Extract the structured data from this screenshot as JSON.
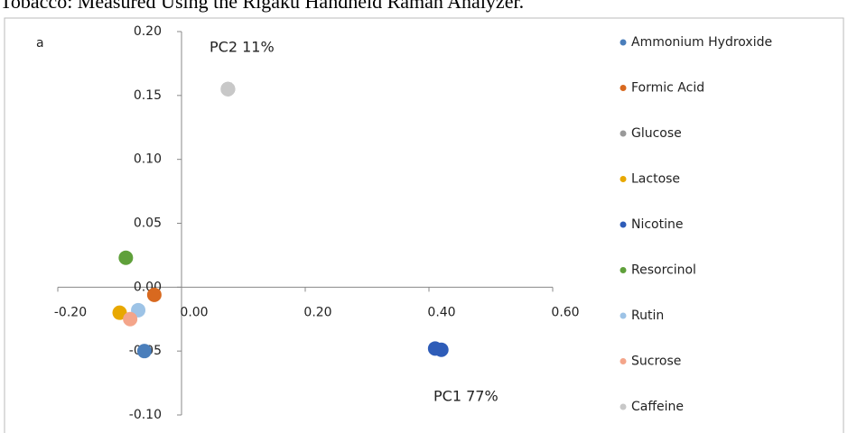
{
  "caption": "Tobacco: Measured Using the Rigaku Handheld Raman Analyzer.",
  "chart_data": {
    "type": "scatter",
    "panel_label": "a",
    "annotations": [
      "PC2  11%",
      "PC1  77%"
    ],
    "xlim": [
      -0.2,
      0.6
    ],
    "xticks": [
      {
        "value": -0.2,
        "label": "-0.20"
      },
      {
        "value": 0,
        "label": "0.00"
      },
      {
        "value": 0.2,
        "label": "0.20"
      },
      {
        "value": 0.4,
        "label": "0.40"
      },
      {
        "value": 0.6,
        "label": "0.60"
      }
    ],
    "ylim": [
      -0.1,
      0.2
    ],
    "yticks": [
      {
        "value": -0.1,
        "label": "-0.10"
      },
      {
        "value": -0.05,
        "label": "-0.05"
      },
      {
        "value": 0,
        "label": "0.00"
      },
      {
        "value": 0.05,
        "label": "0.05"
      },
      {
        "value": 0.1,
        "label": "0.10"
      },
      {
        "value": 0.15,
        "label": "0.15"
      },
      {
        "value": 0.2,
        "label": "0.20"
      }
    ],
    "series": [
      {
        "name": "Ammonium Hydroxide",
        "color": "#4a7ebb",
        "x": [
          -0.06
        ],
        "values": [
          -0.05
        ]
      },
      {
        "name": "Formic Acid",
        "color": "#d8691f",
        "x": [
          -0.044
        ],
        "values": [
          -0.006
        ]
      },
      {
        "name": "Glucose",
        "color": "#999999",
        "x": [
          0.075
        ],
        "values": [
          0.155
        ]
      },
      {
        "name": "Lactose",
        "color": "#e8a800",
        "x": [
          -0.1
        ],
        "values": [
          -0.02
        ]
      },
      {
        "name": "Nicotine",
        "color": "#2e5cb8",
        "x": [
          0.41,
          0.42
        ],
        "values": [
          -0.048,
          -0.049
        ]
      },
      {
        "name": "Resorcinol",
        "color": "#5fa03a",
        "x": [
          -0.09
        ],
        "values": [
          0.023
        ]
      },
      {
        "name": "Rutin",
        "color": "#9dc3e6",
        "x": [
          -0.07
        ],
        "values": [
          -0.018
        ]
      },
      {
        "name": "Sucrose",
        "color": "#f4a58a",
        "x": [
          -0.083
        ],
        "values": [
          -0.025
        ]
      },
      {
        "name": "Caffeine",
        "color": "#c8c8c8",
        "x": [
          0.075
        ],
        "values": [
          0.155
        ]
      }
    ]
  }
}
